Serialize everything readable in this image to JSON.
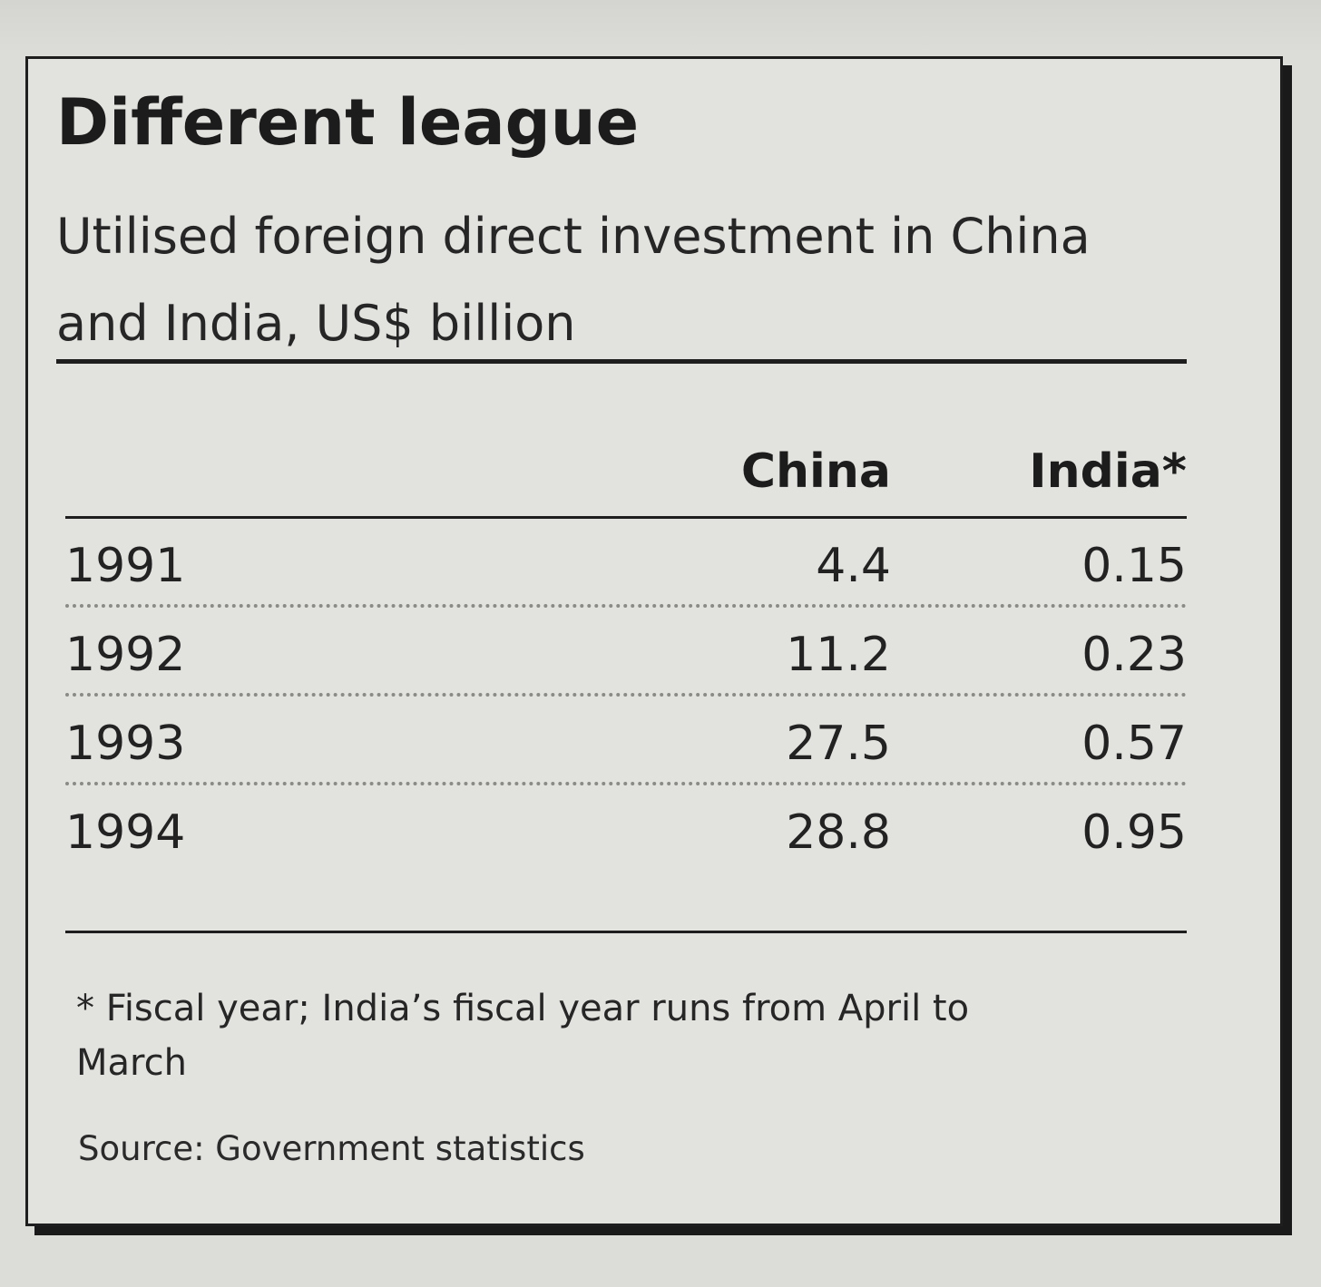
{
  "chart_data": {
    "type": "table",
    "title": "Different league",
    "subtitle": "Utilised foreign direct investment in China and India, US$ billion",
    "columns": [
      "China",
      "India*"
    ],
    "rows": [
      {
        "year": "1991",
        "china": "4.4",
        "india": "0.15"
      },
      {
        "year": "1992",
        "china": "11.2",
        "india": "0.23"
      },
      {
        "year": "1993",
        "china": "27.5",
        "india": "0.57"
      },
      {
        "year": "1994",
        "china": "28.8",
        "india": "0.95"
      }
    ],
    "footnote": "* Fiscal year; India’s fiscal year runs from April to March",
    "source": "Source: Government statistics"
  }
}
